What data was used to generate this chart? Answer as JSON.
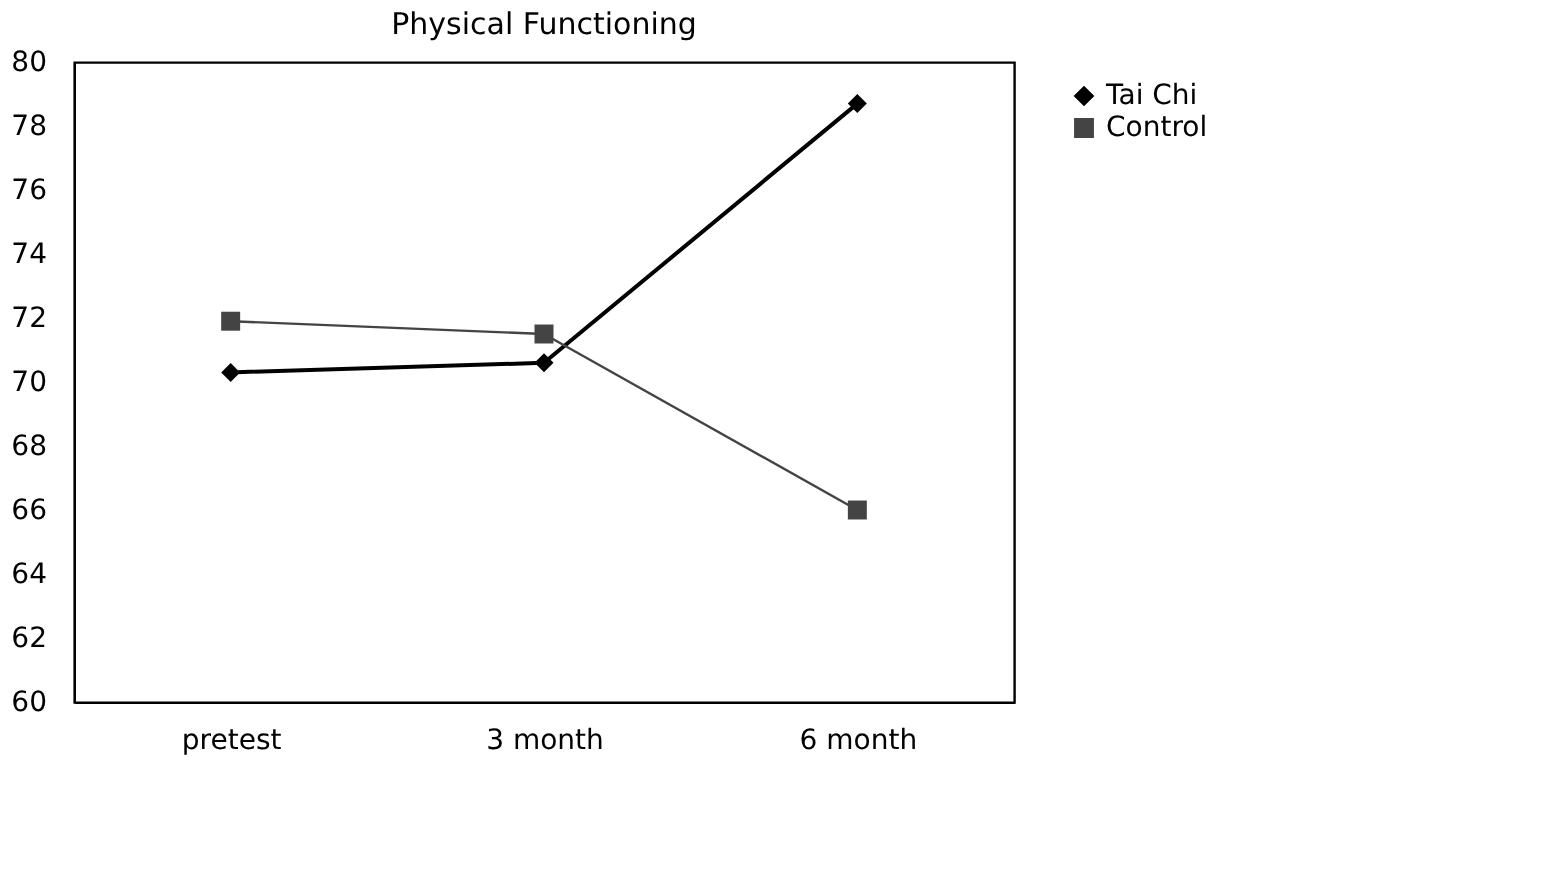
{
  "chart_data": {
    "type": "line",
    "title": "Physical Functioning",
    "categories": [
      "pretest",
      "3 month",
      "6 month"
    ],
    "series": [
      {
        "name": "Tai Chi",
        "color": "#000000",
        "marker": "diamond",
        "values": [
          70.3,
          70.6,
          78.7
        ]
      },
      {
        "name": "Control",
        "color": "#444444",
        "marker": "square",
        "values": [
          71.9,
          71.5,
          66.0
        ]
      }
    ],
    "ylim": [
      60,
      80
    ],
    "yticks": [
      60,
      62,
      64,
      66,
      68,
      70,
      72,
      74,
      76,
      78,
      80
    ],
    "grid": false,
    "legend": "right",
    "line_style": "solid"
  }
}
